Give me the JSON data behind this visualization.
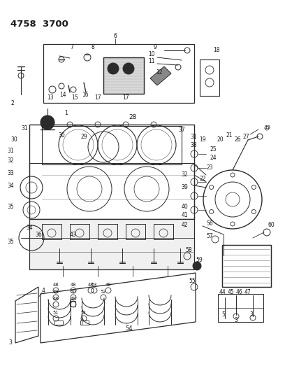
{
  "title_code": "4758  3700",
  "bg_color": "#ffffff",
  "line_color": "#2b2b2b",
  "text_color": "#1a1a1a",
  "fig_width": 4.08,
  "fig_height": 5.33,
  "dpi": 100
}
